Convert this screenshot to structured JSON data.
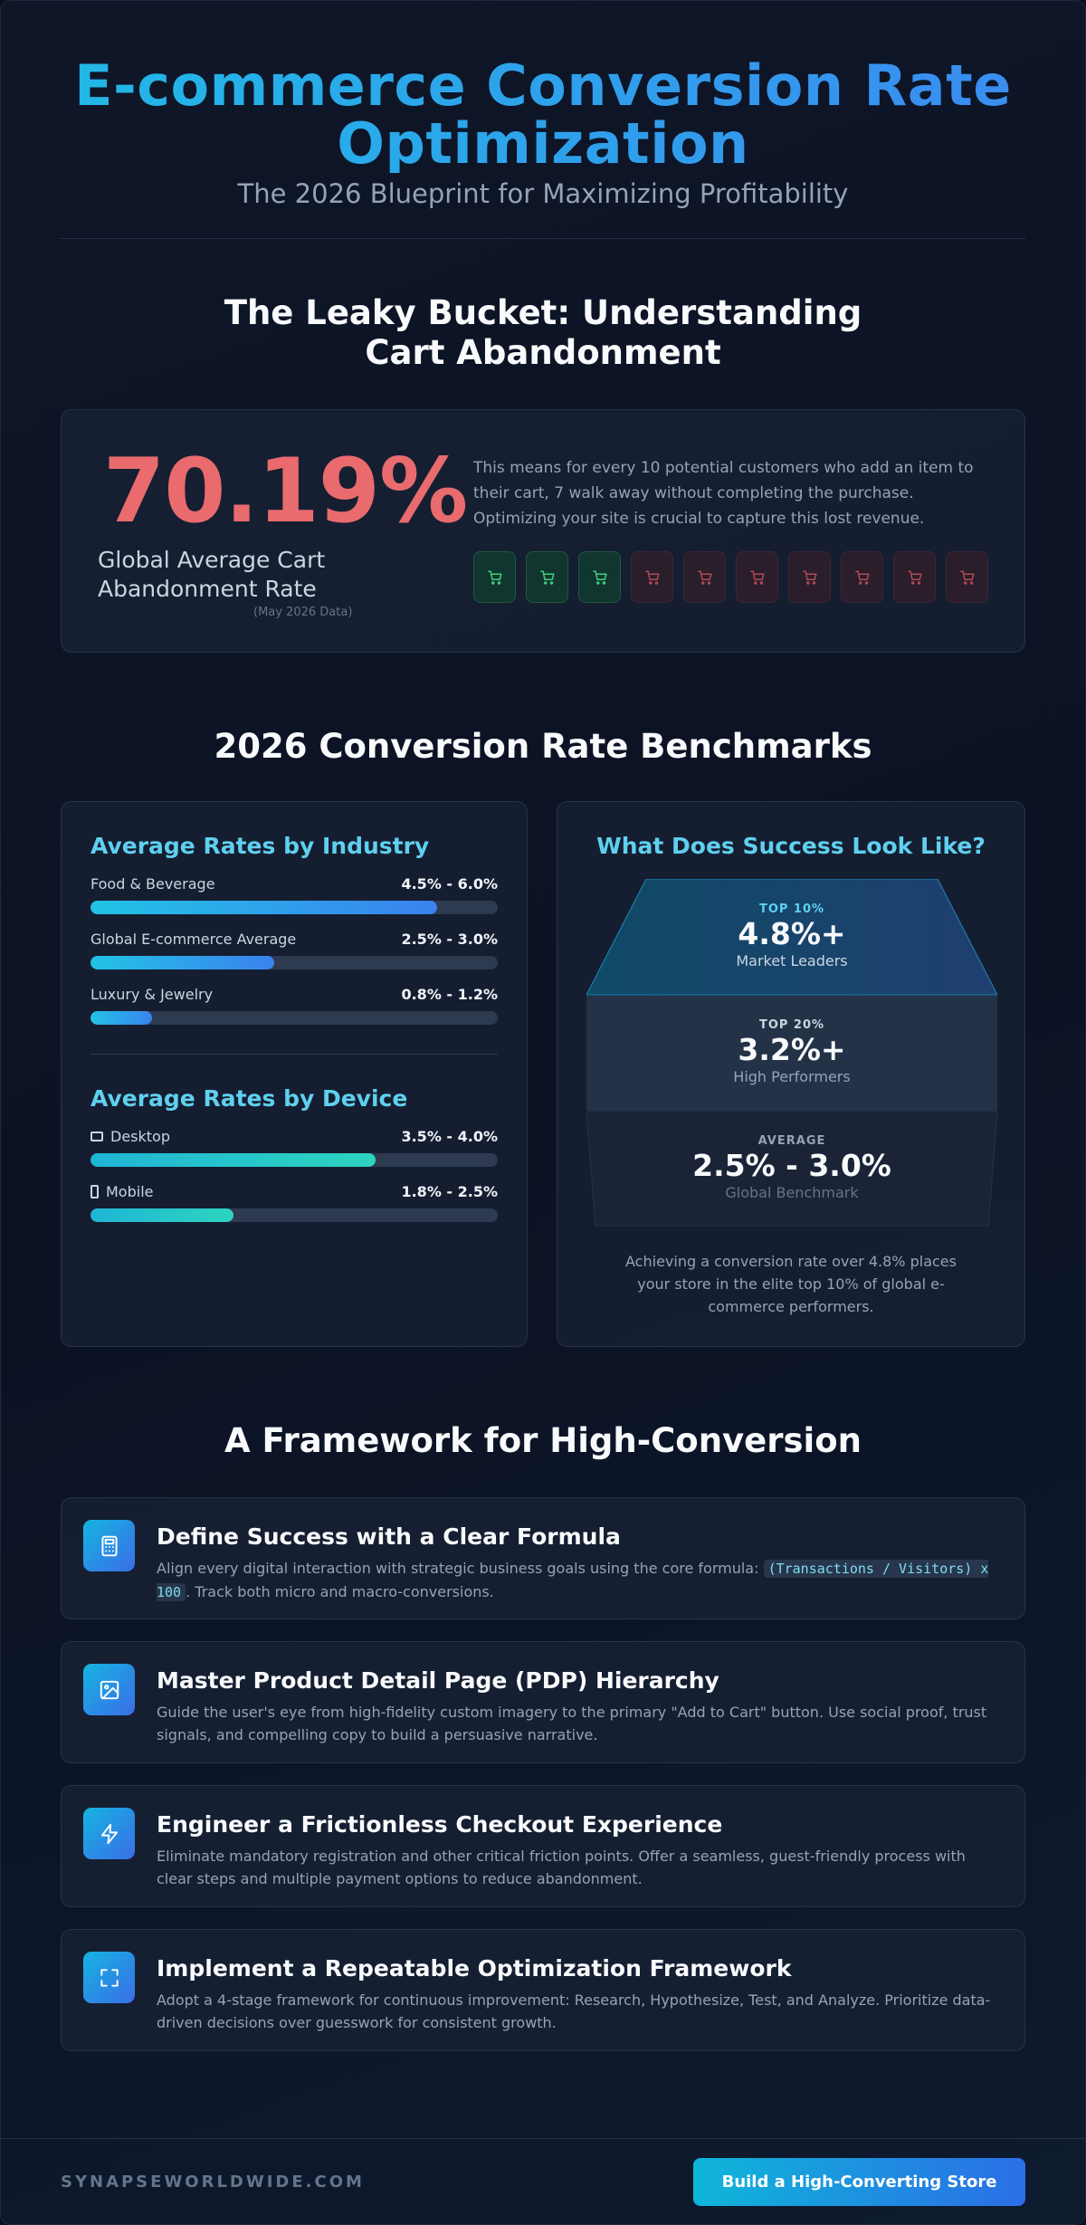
{
  "hero": {
    "title": "E-commerce Conversion Rate Optimization",
    "subtitle": "The 2026 Blueprint for Maximizing Profitability"
  },
  "abandonment": {
    "section_title": "The Leaky Bucket: Understanding Cart Abandonment",
    "stat_value": "70.19%",
    "stat_label": "Global Average Cart Abandonment Rate",
    "stat_note": "(May 2026 Data)",
    "description": "This means for every 10 potential customers who add an item to their cart, 7 walk away without completing the purchase. Optimizing your site is crucial to capture this lost revenue.",
    "carts_total": 10,
    "carts_completed": 3,
    "completed_color": "#3fd27f",
    "abandoned_color": "#b04b56",
    "cart_icon": "shopping-cart-icon"
  },
  "benchmarks": {
    "section_title": "2026 Conversion Rate Benchmarks",
    "industry": {
      "heading": "Average Rates by Industry",
      "items": [
        {
          "name": "Food & Beverage",
          "range": "4.5% - 6.0%",
          "fill": 0.85
        },
        {
          "name": "Global E-commerce Average",
          "range": "2.5% - 3.0%",
          "fill": 0.45
        },
        {
          "name": "Luxury & Jewelry",
          "range": "0.8% - 1.2%",
          "fill": 0.15
        }
      ]
    },
    "device": {
      "heading": "Average Rates by Device",
      "items": [
        {
          "name": "Desktop",
          "range": "3.5% - 4.0%",
          "fill": 0.7,
          "icon": "desktop-icon"
        },
        {
          "name": "Mobile",
          "range": "1.8% - 2.5%",
          "fill": 0.35,
          "icon": "mobile-icon"
        }
      ]
    },
    "success": {
      "heading": "What Does Success Look Like?",
      "tiers": [
        {
          "tag": "TOP 10%",
          "value": "4.8%+",
          "label": "Market Leaders"
        },
        {
          "tag": "TOP 20%",
          "value": "3.2%+",
          "label": "High Performers"
        },
        {
          "tag": "AVERAGE",
          "value": "2.5% - 3.0%",
          "label": "Global Benchmark"
        }
      ],
      "note": "Achieving a conversion rate over 4.8% places your store in the elite top 10% of global e-commerce performers."
    }
  },
  "framework": {
    "section_title": "A Framework for High-Conversion",
    "steps": [
      {
        "icon": "calculator-icon",
        "title": "Define Success with a Clear Formula",
        "desc_before": "Align every digital interaction with strategic business goals using the core formula: ",
        "code": "(Transactions / Visitors) x 100",
        "desc_after": ". Track both micro and macro-conversions."
      },
      {
        "icon": "image-icon",
        "title": "Master Product Detail Page (PDP) Hierarchy",
        "desc": "Guide the user's eye from high-fidelity custom imagery to the primary \"Add to Cart\" button. Use social proof, trust signals, and compelling copy to build a persuasive narrative."
      },
      {
        "icon": "lightning-icon",
        "title": "Engineer a Frictionless Checkout Experience",
        "desc": "Eliminate mandatory registration and other critical friction points. Offer a seamless, guest-friendly process with clear steps and multiple payment options to reduce abandonment."
      },
      {
        "icon": "frame-corners-icon",
        "title": "Implement a Repeatable Optimization Framework",
        "desc": "Adopt a 4-stage framework for continuous improvement: Research, Hypothesize, Test, and Analyze. Prioritize data-driven decisions over guesswork for consistent growth."
      }
    ]
  },
  "footer": {
    "brand": "SYNAPSEWORLDWIDE.COM",
    "cta_label": "Build a High-Converting Store"
  }
}
